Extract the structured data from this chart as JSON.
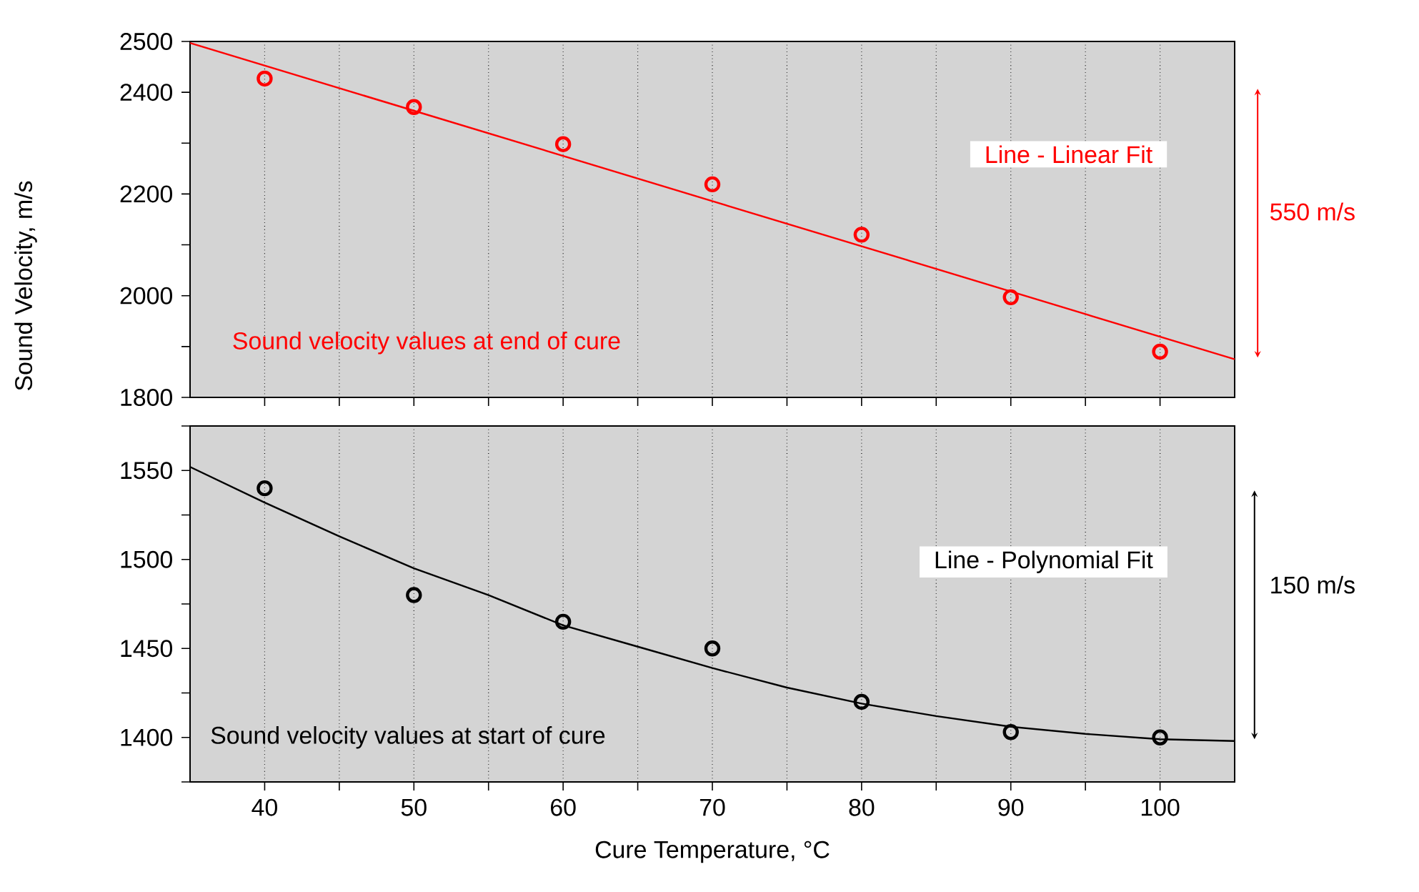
{
  "chart_data": [
    {
      "type": "scatter",
      "ylabel": "Sound Velocity, m/s",
      "x": [
        40,
        50,
        60,
        70,
        80,
        90,
        100
      ],
      "series": [
        {
          "color": "#ff0000",
          "marker": "circle",
          "values": [
            2427,
            2371,
            2298,
            2219,
            2120,
            1997,
            1890
          ]
        },
        {
          "type": "line",
          "marker": "none",
          "color": "#ff0000",
          "x": [
            35,
            105
          ],
          "values": [
            2497,
            1875
          ]
        }
      ],
      "xlim": [
        35,
        105
      ],
      "xticks": [
        40,
        {
          "value": 45,
          "label": null
        },
        50,
        {
          "value": 55,
          "label": null
        },
        60,
        {
          "value": 65,
          "label": null
        },
        70,
        {
          "value": 75,
          "label": null
        },
        80,
        {
          "value": 85,
          "label": null
        },
        90,
        {
          "value": 95,
          "label": null
        },
        100
      ],
      "ylim": [
        1800,
        2500
      ],
      "yticks": [
        1800,
        {
          "value": 1900,
          "label": null
        },
        2000,
        {
          "value": 2100,
          "label": null
        },
        2200,
        {
          "value": 2300,
          "label": null
        },
        2400,
        2500
      ],
      "tick_labels": "y",
      "grid": "x",
      "annotations": [
        "Sound velocity values at end of cure",
        "Line - Linear Fit",
        "550 m/s"
      ]
    },
    {
      "type": "scatter",
      "xlabel": "Cure Temperature,  °C",
      "x": [
        40,
        50,
        60,
        70,
        80,
        90,
        100
      ],
      "series": [
        {
          "color": "#000000",
          "marker": "circle",
          "values": [
            1540,
            1480,
            1465,
            1450,
            1420,
            1403,
            1400
          ]
        },
        {
          "type": "line",
          "marker": "none",
          "color": "#000000",
          "x": [
            35,
            40,
            45,
            50,
            55,
            60,
            65,
            70,
            75,
            80,
            85,
            90,
            95,
            100,
            105
          ],
          "values": [
            1552,
            1532,
            1513,
            1495,
            1480,
            1463,
            1451,
            1439,
            1428,
            1419,
            1412,
            1406,
            1402,
            1399,
            1398
          ]
        }
      ],
      "xlim": [
        35,
        105
      ],
      "xticks": [
        40,
        {
          "value": 45,
          "label": null
        },
        50,
        {
          "value": 55,
          "label": null
        },
        60,
        {
          "value": 65,
          "label": null
        },
        70,
        {
          "value": 75,
          "label": null
        },
        80,
        {
          "value": 85,
          "label": null
        },
        90,
        {
          "value": 95,
          "label": null
        },
        100
      ],
      "ylim": [
        1375,
        1575
      ],
      "yticks": [
        {
          "value": 1375,
          "label": null
        },
        1400,
        {
          "value": 1425,
          "label": null
        },
        1450,
        {
          "value": 1475,
          "label": null
        },
        1500,
        {
          "value": 1525,
          "label": null
        },
        1550,
        {
          "value": 1575,
          "label": null
        }
      ],
      "grid": "x",
      "annotations": [
        "Sound velocity values at start of cure",
        "Line - Polynomial Fit",
        "150 m/s"
      ]
    }
  ]
}
